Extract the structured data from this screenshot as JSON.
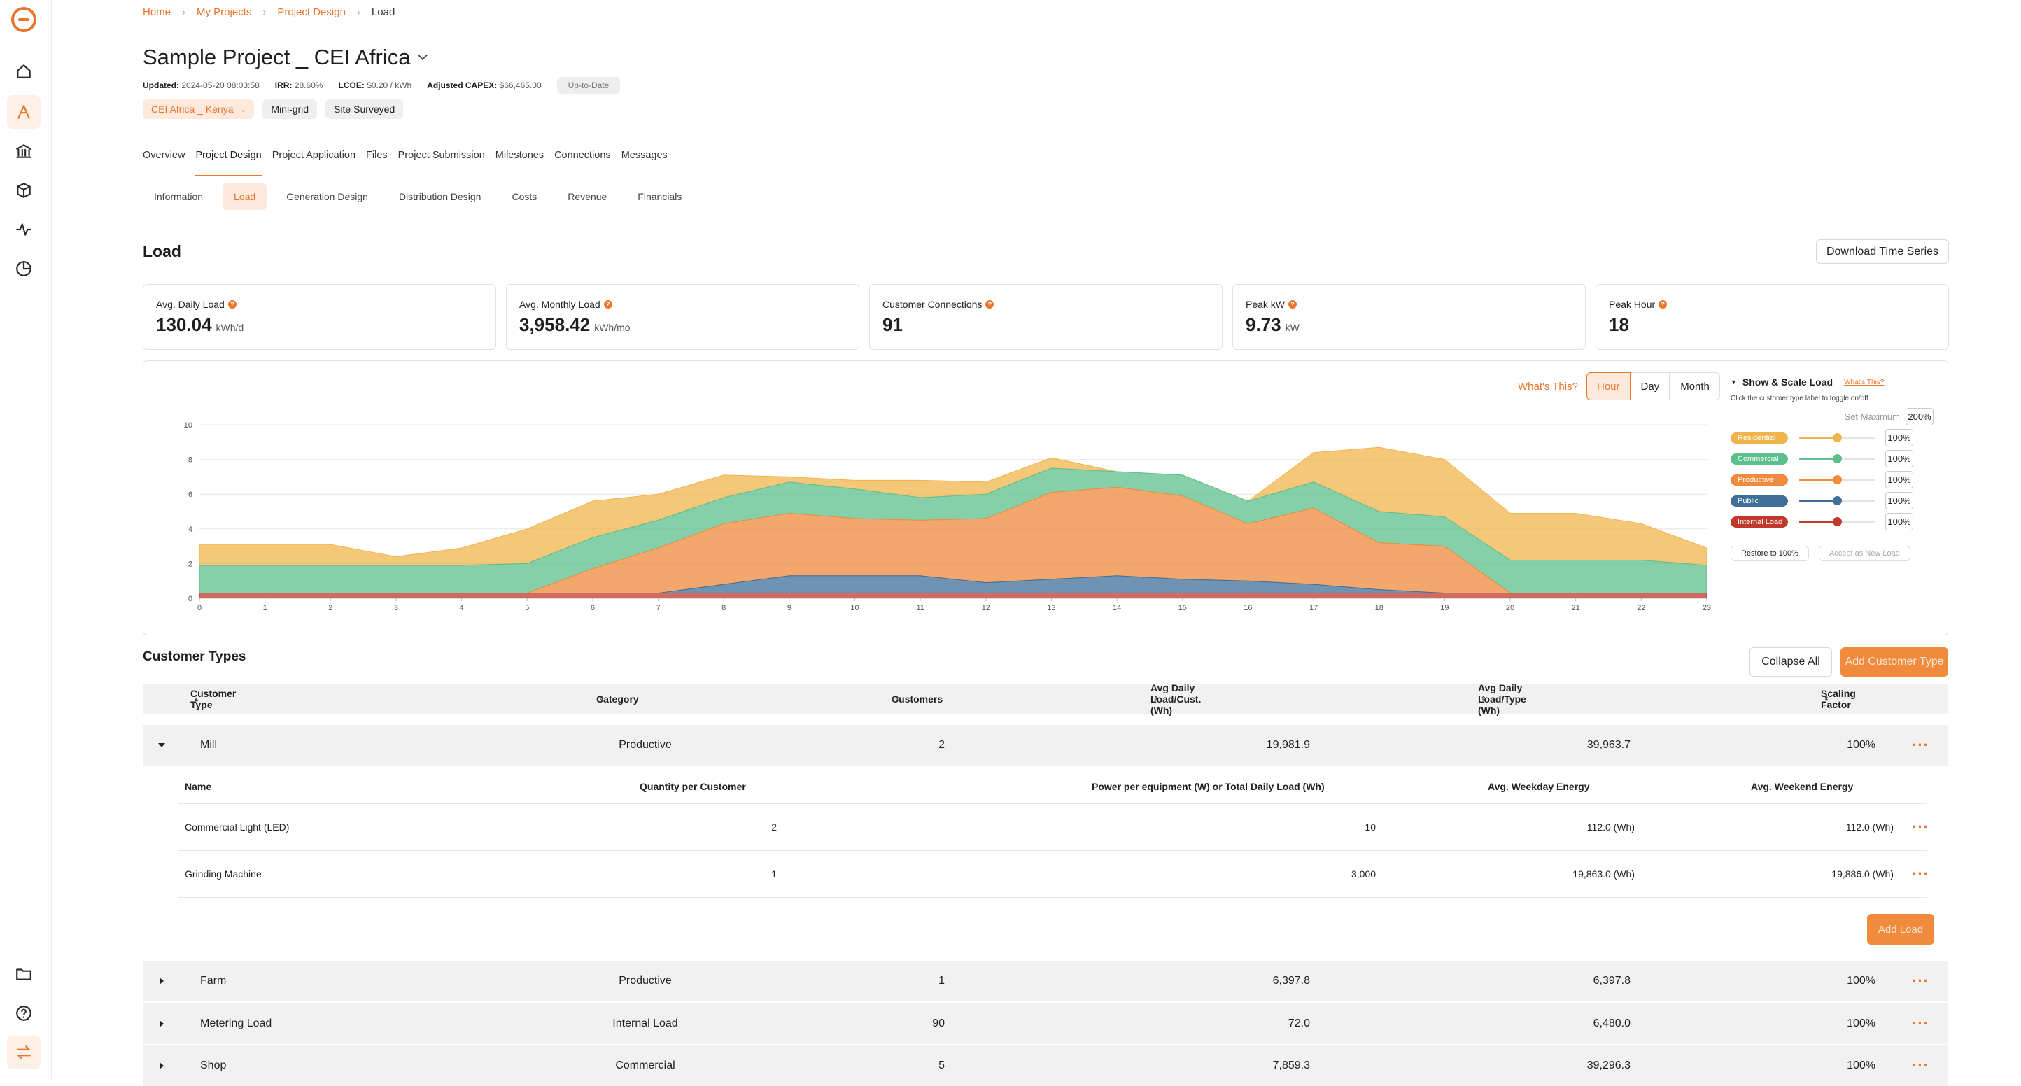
{
  "breadcrumb": [
    "Home",
    "My Projects",
    "Project Design",
    "Load"
  ],
  "project": {
    "title": "Sample Project _ CEI Africa",
    "updated_label": "Updated:",
    "updated": "2024-05-20 08:03:58",
    "irr_label": "IRR:",
    "irr": "28.60%",
    "lcoe_label": "LCOE:",
    "lcoe": "$0.20 / kWh",
    "capex_label": "Adjusted CAPEX:",
    "capex": "$66,465.00",
    "status": "Up-to-Date",
    "tags": [
      "CEI Africa _ Kenya",
      "Mini-grid",
      "Site Surveyed"
    ]
  },
  "tabs": [
    "Overview",
    "Project Design",
    "Project Application",
    "Files",
    "Project Submission",
    "Milestones",
    "Connections",
    "Messages"
  ],
  "subtabs": [
    "Information",
    "Load",
    "Generation Design",
    "Distribution Design",
    "Costs",
    "Revenue",
    "Financials"
  ],
  "section_title": "Load",
  "download_button": "Download Time Series",
  "stats": [
    {
      "label": "Avg. Daily Load",
      "value": "130.04",
      "unit": "kWh/d"
    },
    {
      "label": "Avg. Monthly Load",
      "value": "3,958.42",
      "unit": "kWh/mo"
    },
    {
      "label": "Customer Connections",
      "value": "91",
      "unit": ""
    },
    {
      "label": "Peak kW",
      "value": "9.73",
      "unit": "kW"
    },
    {
      "label": "Peak Hour",
      "value": "18",
      "unit": ""
    }
  ],
  "chart_controls": {
    "whats_this": "What's This?",
    "ranges": [
      "Hour",
      "Day",
      "Month"
    ],
    "selected": "Hour"
  },
  "legend": {
    "title": "Show & Scale Load",
    "whats_this": "What's This?",
    "hint": "Click the customer type label to toggle on/off",
    "set_max_label": "Set Maximum",
    "set_max_value": "200%",
    "items": [
      {
        "label": "Residential",
        "pct": "100%",
        "color": "#f0b44c"
      },
      {
        "label": "Commercial",
        "pct": "100%",
        "color": "#5cbf8c"
      },
      {
        "label": "Productive",
        "pct": "100%",
        "color": "#f08a3c"
      },
      {
        "label": "Public",
        "pct": "100%",
        "color": "#3f6f99"
      },
      {
        "label": "Internal Load",
        "pct": "100%",
        "color": "#c0392b"
      }
    ],
    "restore_button": "Restore to 100%",
    "accept_button": "Accept as New Load"
  },
  "chart_data": {
    "type": "area",
    "stacked": true,
    "x": [
      0,
      1,
      2,
      3,
      4,
      5,
      6,
      7,
      8,
      9,
      10,
      11,
      12,
      13,
      14,
      15,
      16,
      17,
      18,
      19,
      20,
      21,
      22,
      23
    ],
    "ylim": [
      0,
      10
    ],
    "yticks": [
      0,
      2,
      4,
      6,
      8,
      10
    ],
    "series": [
      {
        "name": "Internal Load",
        "color": "#c0392b",
        "values": [
          0.3,
          0.3,
          0.3,
          0.3,
          0.3,
          0.3,
          0.3,
          0.3,
          0.3,
          0.3,
          0.3,
          0.3,
          0.3,
          0.3,
          0.3,
          0.3,
          0.3,
          0.3,
          0.3,
          0.3,
          0.3,
          0.3,
          0.3,
          0.3
        ]
      },
      {
        "name": "Public",
        "color": "#3f6f99",
        "values": [
          0,
          0,
          0,
          0,
          0,
          0,
          0,
          0,
          0.5,
          1.0,
          1.0,
          1.0,
          0.6,
          0.8,
          1.0,
          0.8,
          0.7,
          0.5,
          0.2,
          0,
          0,
          0,
          0,
          0
        ]
      },
      {
        "name": "Productive",
        "color": "#f08a3c",
        "values": [
          0,
          0,
          0,
          0,
          0,
          0,
          1.4,
          2.6,
          3.5,
          3.6,
          3.3,
          3.2,
          3.7,
          5.0,
          5.1,
          4.8,
          3.3,
          4.4,
          2.7,
          2.7,
          0,
          0,
          0,
          0
        ]
      },
      {
        "name": "Commercial",
        "color": "#5cbf8c",
        "values": [
          1.6,
          1.6,
          1.6,
          1.6,
          1.6,
          1.7,
          1.8,
          1.6,
          1.5,
          1.8,
          1.7,
          1.3,
          1.4,
          1.4,
          0.9,
          1.2,
          1.3,
          1.5,
          1.8,
          1.7,
          1.9,
          1.9,
          1.9,
          1.6
        ]
      },
      {
        "name": "Residential",
        "color": "#f0b44c",
        "values": [
          1.2,
          1.2,
          1.2,
          0.5,
          1.0,
          2.0,
          2.1,
          1.5,
          1.3,
          0.3,
          0.5,
          1.0,
          0.7,
          0.6,
          0,
          0,
          0,
          1.7,
          3.7,
          3.3,
          2.7,
          2.7,
          2.1,
          1.0
        ]
      }
    ]
  },
  "customer_types": {
    "title": "Customer Types",
    "collapse_button": "Collapse All",
    "add_button": "Add Customer Type",
    "headers": [
      "Customer Type",
      "Category",
      "Customers",
      "Avg Daily Load/Cust. (Wh)",
      "Avg Daily Load/Type (Wh)",
      "Scaling Factor"
    ],
    "rows": [
      {
        "name": "Mill",
        "category": "Productive",
        "customers": "2",
        "per_cust": "19,981.9",
        "per_type": "39,963.7",
        "scaling": "100%"
      },
      {
        "name": "Farm",
        "category": "Productive",
        "customers": "1",
        "per_cust": "6,397.8",
        "per_type": "6,397.8",
        "scaling": "100%"
      },
      {
        "name": "Metering Load",
        "category": "Internal Load",
        "customers": "90",
        "per_cust": "72.0",
        "per_type": "6,480.0",
        "scaling": "100%"
      },
      {
        "name": "Shop",
        "category": "Commercial",
        "customers": "5",
        "per_cust": "7,859.3",
        "per_type": "39,296.3",
        "scaling": "100%"
      }
    ],
    "sub_headers": [
      "Name",
      "Quantity per Customer",
      "Power per equipment (W) or Total Daily Load (Wh)",
      "Avg. Weekday Energy",
      "Avg. Weekend Energy"
    ],
    "sub_rows": [
      {
        "name": "Commercial Light (LED)",
        "qty": "2",
        "power": "10",
        "weekday": "112.0 (Wh)",
        "weekend": "112.0 (Wh)"
      },
      {
        "name": "Grinding Machine",
        "qty": "1",
        "power": "3,000",
        "weekday": "19,863.0 (Wh)",
        "weekend": "19,886.0 (Wh)"
      }
    ],
    "add_load_button": "Add Load"
  }
}
